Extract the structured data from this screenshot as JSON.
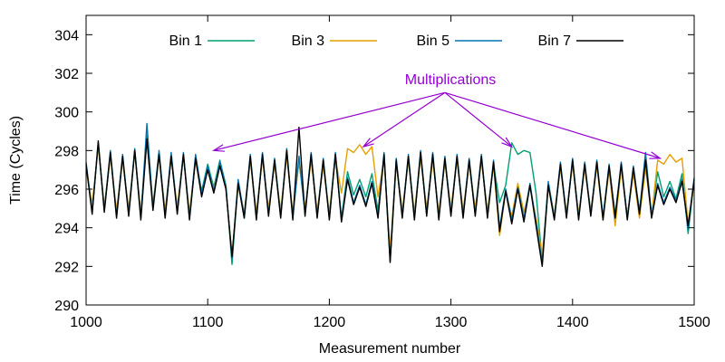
{
  "chart_data": {
    "type": "line",
    "title": "",
    "xlabel": "Measurement number",
    "ylabel": "Time (Cycles)",
    "xlim": [
      1000,
      1500
    ],
    "ylim": [
      290,
      305
    ],
    "xticks": [
      1000,
      1100,
      1200,
      1300,
      1400,
      1500
    ],
    "yticks": [
      290,
      292,
      294,
      296,
      298,
      300,
      302,
      304
    ],
    "grid": false,
    "legend": "top",
    "annotation": {
      "text": "Multiplications",
      "color": "#9400d3",
      "origin": [
        1295,
        301.0
      ],
      "targets": [
        [
          1105,
          298.0
        ],
        [
          1228,
          298.2
        ],
        [
          1350,
          298.2
        ],
        [
          1472,
          297.6
        ]
      ]
    },
    "series": [
      {
        "name": "Bin 1",
        "color": "#009e73",
        "x": [
          1000,
          1005,
          1010,
          1015,
          1020,
          1025,
          1030,
          1035,
          1040,
          1045,
          1050,
          1055,
          1060,
          1065,
          1070,
          1075,
          1080,
          1085,
          1090,
          1095,
          1100,
          1105,
          1110,
          1115,
          1120,
          1125,
          1130,
          1135,
          1140,
          1145,
          1150,
          1155,
          1160,
          1165,
          1170,
          1175,
          1180,
          1185,
          1190,
          1195,
          1200,
          1205,
          1210,
          1215,
          1220,
          1225,
          1230,
          1235,
          1240,
          1245,
          1250,
          1255,
          1260,
          1265,
          1270,
          1275,
          1280,
          1285,
          1290,
          1295,
          1300,
          1305,
          1310,
          1315,
          1320,
          1325,
          1330,
          1335,
          1340,
          1345,
          1350,
          1355,
          1360,
          1365,
          1370,
          1375,
          1380,
          1385,
          1390,
          1395,
          1400,
          1405,
          1410,
          1415,
          1420,
          1425,
          1430,
          1435,
          1440,
          1445,
          1450,
          1455,
          1460,
          1465,
          1470,
          1475,
          1480,
          1485,
          1490,
          1495,
          1500
        ],
        "y": [
          297.2,
          294.9,
          298.3,
          295.0,
          297.8,
          294.7,
          297.6,
          294.8,
          298.0,
          294.6,
          298.8,
          295.1,
          297.9,
          294.7,
          297.7,
          294.9,
          297.8,
          294.6,
          297.6,
          295.9,
          297.3,
          296.1,
          297.5,
          296.2,
          292.1,
          296.4,
          294.5,
          297.6,
          294.6,
          297.8,
          294.8,
          297.4,
          294.7,
          297.9,
          294.6,
          297.5,
          294.8,
          297.7,
          294.7,
          297.4,
          294.6,
          297.8,
          294.5,
          296.9,
          295.7,
          296.5,
          295.6,
          296.8,
          294.9,
          297.7,
          292.3,
          297.4,
          294.7,
          297.6,
          294.6,
          297.8,
          294.8,
          297.7,
          294.6,
          297.5,
          294.8,
          297.6,
          294.7,
          297.4,
          294.8,
          297.6,
          294.7,
          297.3,
          295.3,
          296.2,
          298.4,
          297.8,
          298.0,
          297.9,
          295.8,
          292.3,
          296.3,
          294.6,
          297.2,
          294.7,
          297.4,
          294.6,
          297.2,
          294.8,
          297.3,
          294.6,
          297.1,
          294.7,
          297.2,
          294.6,
          297.0,
          294.9,
          297.2,
          294.7,
          296.9,
          295.6,
          296.4,
          295.5,
          296.8,
          293.7,
          296.5
        ]
      },
      {
        "name": "Bin 3",
        "color": "#e69f00",
        "x": [
          1000,
          1005,
          1010,
          1015,
          1020,
          1025,
          1030,
          1035,
          1040,
          1045,
          1050,
          1055,
          1060,
          1065,
          1070,
          1075,
          1080,
          1085,
          1090,
          1095,
          1100,
          1105,
          1110,
          1115,
          1120,
          1125,
          1130,
          1135,
          1140,
          1145,
          1150,
          1155,
          1160,
          1165,
          1170,
          1175,
          1180,
          1185,
          1190,
          1195,
          1200,
          1205,
          1210,
          1215,
          1220,
          1225,
          1230,
          1235,
          1240,
          1245,
          1250,
          1255,
          1260,
          1265,
          1270,
          1275,
          1280,
          1285,
          1290,
          1295,
          1300,
          1305,
          1310,
          1315,
          1320,
          1325,
          1330,
          1335,
          1340,
          1345,
          1350,
          1355,
          1360,
          1365,
          1370,
          1375,
          1380,
          1385,
          1390,
          1395,
          1400,
          1405,
          1410,
          1415,
          1420,
          1425,
          1430,
          1435,
          1440,
          1445,
          1450,
          1455,
          1460,
          1465,
          1470,
          1475,
          1480,
          1485,
          1490,
          1495,
          1500
        ],
        "y": [
          297.0,
          295.2,
          298.2,
          295.1,
          297.7,
          294.9,
          297.5,
          295.0,
          297.9,
          294.8,
          298.5,
          295.3,
          297.7,
          294.9,
          297.6,
          295.1,
          297.7,
          294.8,
          297.5,
          295.7,
          297.1,
          296.0,
          297.3,
          296.0,
          292.6,
          296.2,
          294.8,
          297.5,
          294.8,
          297.6,
          295.0,
          297.3,
          294.9,
          297.7,
          294.8,
          297.4,
          295.0,
          297.5,
          294.9,
          297.2,
          294.8,
          297.6,
          295.8,
          298.1,
          297.9,
          298.3,
          297.8,
          298.2,
          295.6,
          297.6,
          292.8,
          297.3,
          294.9,
          297.5,
          294.8,
          297.6,
          295.0,
          297.5,
          294.8,
          297.4,
          295.0,
          297.5,
          294.9,
          297.3,
          295.0,
          297.5,
          294.9,
          297.2,
          293.6,
          295.9,
          294.6,
          296.3,
          294.8,
          296.1,
          294.5,
          292.6,
          296.1,
          294.7,
          297.1,
          294.8,
          297.3,
          294.7,
          297.1,
          294.9,
          297.2,
          294.4,
          297.0,
          294.1,
          297.1,
          294.6,
          296.8,
          294.5,
          297.1,
          294.6,
          297.5,
          297.3,
          297.8,
          297.4,
          297.6,
          294.2,
          296.3
        ]
      },
      {
        "name": "Bin 5",
        "color": "#0072b2",
        "x": [
          1000,
          1005,
          1010,
          1015,
          1020,
          1025,
          1030,
          1035,
          1040,
          1045,
          1050,
          1055,
          1060,
          1065,
          1070,
          1075,
          1080,
          1085,
          1090,
          1095,
          1100,
          1105,
          1110,
          1115,
          1120,
          1125,
          1130,
          1135,
          1140,
          1145,
          1150,
          1155,
          1160,
          1165,
          1170,
          1175,
          1180,
          1185,
          1190,
          1195,
          1200,
          1205,
          1210,
          1215,
          1220,
          1225,
          1230,
          1235,
          1240,
          1245,
          1250,
          1255,
          1260,
          1265,
          1270,
          1275,
          1280,
          1285,
          1290,
          1295,
          1300,
          1305,
          1310,
          1315,
          1320,
          1325,
          1330,
          1335,
          1340,
          1345,
          1350,
          1355,
          1360,
          1365,
          1370,
          1375,
          1380,
          1385,
          1390,
          1395,
          1400,
          1405,
          1410,
          1415,
          1420,
          1425,
          1430,
          1435,
          1440,
          1445,
          1450,
          1455,
          1460,
          1465,
          1470,
          1475,
          1480,
          1485,
          1490,
          1495,
          1500
        ],
        "y": [
          297.4,
          294.8,
          298.4,
          294.9,
          298.0,
          294.6,
          297.8,
          294.7,
          298.1,
          294.5,
          299.4,
          295.0,
          298.0,
          294.6,
          297.9,
          294.8,
          297.9,
          294.5,
          297.8,
          295.8,
          297.2,
          295.9,
          297.4,
          296.1,
          292.4,
          296.5,
          294.6,
          297.8,
          294.5,
          297.9,
          294.7,
          297.6,
          294.6,
          298.1,
          294.5,
          297.7,
          294.7,
          297.9,
          294.6,
          297.6,
          294.5,
          297.9,
          294.4,
          296.6,
          295.3,
          296.2,
          295.2,
          296.4,
          294.6,
          297.9,
          292.3,
          297.6,
          294.6,
          297.8,
          294.5,
          298.0,
          294.7,
          297.9,
          294.5,
          297.7,
          294.7,
          297.8,
          294.6,
          297.6,
          294.7,
          297.8,
          294.6,
          297.5,
          294.0,
          296.0,
          294.4,
          296.1,
          294.5,
          296.3,
          294.3,
          292.2,
          296.4,
          294.5,
          297.4,
          294.6,
          297.6,
          294.5,
          297.4,
          294.7,
          297.5,
          294.5,
          297.3,
          294.6,
          297.4,
          294.5,
          297.2,
          294.8,
          297.9,
          294.6,
          296.3,
          295.3,
          296.1,
          295.4,
          296.5,
          293.9,
          296.6
        ]
      },
      {
        "name": "Bin 7",
        "color": "#000000",
        "x": [
          1000,
          1005,
          1010,
          1015,
          1020,
          1025,
          1030,
          1035,
          1040,
          1045,
          1050,
          1055,
          1060,
          1065,
          1070,
          1075,
          1080,
          1085,
          1090,
          1095,
          1100,
          1105,
          1110,
          1115,
          1120,
          1125,
          1130,
          1135,
          1140,
          1145,
          1150,
          1155,
          1160,
          1165,
          1170,
          1175,
          1180,
          1185,
          1190,
          1195,
          1200,
          1205,
          1210,
          1215,
          1220,
          1225,
          1230,
          1235,
          1240,
          1245,
          1250,
          1255,
          1260,
          1265,
          1270,
          1275,
          1280,
          1285,
          1290,
          1295,
          1300,
          1305,
          1310,
          1315,
          1320,
          1325,
          1330,
          1335,
          1340,
          1345,
          1350,
          1355,
          1360,
          1365,
          1370,
          1375,
          1380,
          1385,
          1390,
          1395,
          1400,
          1405,
          1410,
          1415,
          1420,
          1425,
          1430,
          1435,
          1440,
          1445,
          1450,
          1455,
          1460,
          1465,
          1470,
          1475,
          1480,
          1485,
          1490,
          1495,
          1500
        ],
        "y": [
          297.3,
          294.7,
          298.5,
          294.8,
          297.9,
          294.5,
          297.7,
          294.6,
          298.0,
          294.4,
          298.6,
          294.9,
          297.8,
          294.5,
          297.7,
          294.7,
          297.8,
          294.4,
          297.6,
          295.6,
          297.0,
          295.8,
          297.2,
          296.0,
          292.5,
          296.3,
          294.5,
          297.7,
          294.4,
          297.8,
          294.6,
          297.5,
          294.5,
          298.0,
          294.4,
          299.2,
          294.6,
          297.8,
          294.5,
          297.5,
          294.4,
          297.8,
          294.3,
          296.5,
          295.2,
          296.1,
          295.1,
          296.3,
          294.5,
          297.8,
          292.2,
          297.5,
          294.5,
          297.7,
          294.4,
          297.9,
          294.6,
          297.8,
          294.4,
          297.6,
          294.6,
          297.7,
          294.5,
          297.5,
          294.6,
          297.7,
          294.5,
          297.4,
          293.8,
          295.9,
          294.2,
          296.0,
          294.3,
          296.2,
          294.1,
          292.0,
          296.2,
          294.4,
          297.3,
          294.5,
          297.5,
          294.4,
          297.3,
          294.6,
          297.4,
          294.4,
          297.2,
          294.5,
          297.3,
          294.4,
          297.1,
          294.7,
          297.5,
          294.5,
          296.2,
          295.2,
          296.0,
          295.3,
          296.4,
          294.1,
          296.5
        ]
      }
    ]
  }
}
